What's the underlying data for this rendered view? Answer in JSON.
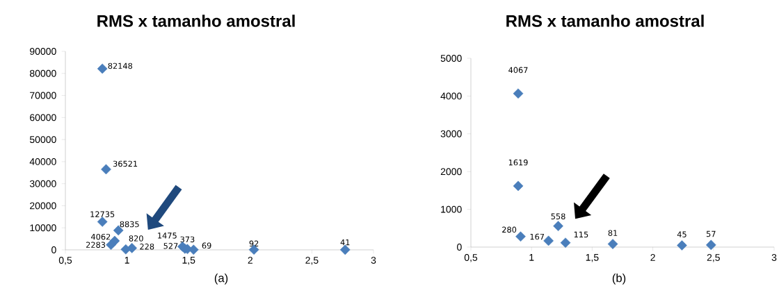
{
  "chart_data": [
    {
      "type": "scatter",
      "title": "RMS x tamanho amostral",
      "marker": "diamond",
      "grid": false,
      "series": [
        {
          "color": "#4a7ebb",
          "x": [
            0.8,
            0.83,
            0.8,
            0.93,
            0.9,
            0.87,
            1.04,
            0.99,
            1.45,
            1.47,
            1.49,
            1.54,
            2.03,
            2.77
          ],
          "values": [
            82148,
            36521,
            12735,
            8835,
            4062,
            2283,
            820,
            228,
            1475,
            527,
            373,
            69,
            92,
            41
          ],
          "value_labels": [
            "82148",
            "36521",
            "12735",
            "8835",
            "4062",
            "2283",
            "820",
            "228",
            "1475",
            "527",
            "373",
            "69",
            "92",
            "41"
          ]
        }
      ],
      "xlim": [
        0.5,
        3
      ],
      "xticks": [
        {
          "value": 0.5,
          "label": "0,5"
        },
        1,
        {
          "value": 1.5,
          "label": "1,5"
        },
        2,
        {
          "value": 2.5,
          "label": "2,5"
        },
        3
      ],
      "ylim": [
        0,
        90000
      ],
      "yticks": [
        0,
        10000,
        20000,
        30000,
        40000,
        50000,
        60000,
        70000,
        80000,
        90000
      ],
      "annotations": [
        "(a)"
      ]
    },
    {
      "type": "scatter",
      "title": "RMS x tamanho amostral",
      "marker": "diamond",
      "grid": false,
      "series": [
        {
          "color": "#4a7ebb",
          "x": [
            0.89,
            0.89,
            0.91,
            1.14,
            1.22,
            1.28,
            1.67,
            2.24,
            2.48
          ],
          "values": [
            4067,
            1619,
            280,
            167,
            558,
            115,
            81,
            45,
            57
          ],
          "value_labels": [
            "4067",
            "1619",
            "280",
            "167",
            "558",
            "115",
            "81",
            "45",
            "57"
          ]
        }
      ],
      "xlim": [
        0.5,
        3
      ],
      "xticks": [
        {
          "value": 0.5,
          "label": "0,5"
        },
        1,
        {
          "value": 1.5,
          "label": "1,5"
        },
        2,
        {
          "value": 2.5,
          "label": "2,5"
        },
        3
      ],
      "ylim": [
        0,
        5000
      ],
      "yticks": [
        0,
        1000,
        2000,
        3000,
        4000,
        5000
      ],
      "annotations": [
        "(b)"
      ]
    }
  ]
}
